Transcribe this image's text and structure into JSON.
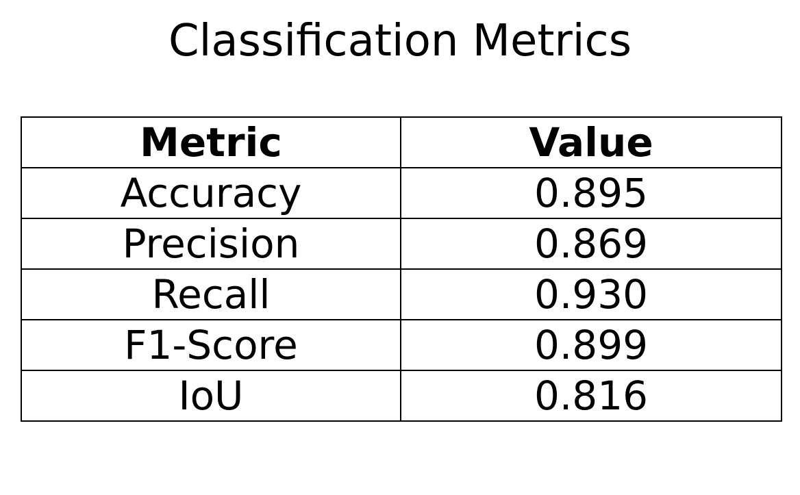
{
  "chart_data": {
    "type": "table",
    "title": "Classification Metrics",
    "columns": [
      "Metric",
      "Value"
    ],
    "rows": [
      [
        "Accuracy",
        "0.895"
      ],
      [
        "Precision",
        "0.869"
      ],
      [
        "Recall",
        "0.930"
      ],
      [
        "F1-Score",
        "0.899"
      ],
      [
        "IoU",
        "0.816"
      ]
    ]
  }
}
